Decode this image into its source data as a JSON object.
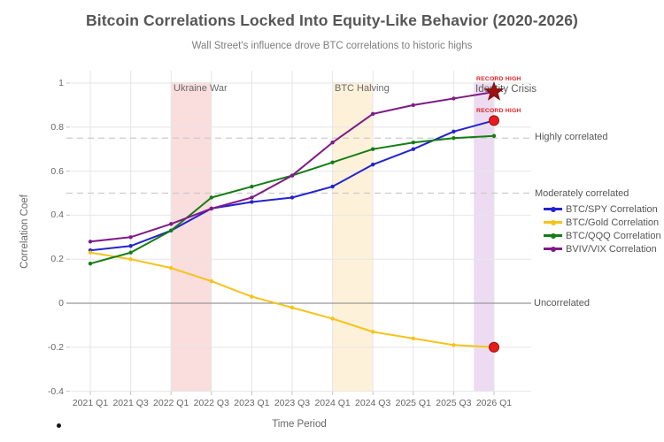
{
  "chart_data": {
    "type": "line",
    "title": "Bitcoin Correlations Locked Into Equity-Like Behavior (2020-2026)",
    "subtitle": "Wall Street's influence drove BTC correlations to historic highs",
    "xlabel": "Time Period",
    "ylabel": "Correlation Coef",
    "categories": [
      "2021 Q1",
      "2021 Q3",
      "2022 Q1",
      "2022 Q3",
      "2023 Q1",
      "2023 Q3",
      "2024 Q1",
      "2024 Q3",
      "2025 Q1",
      "2025 Q3",
      "2026 Q1"
    ],
    "ytick_labels": [
      "1",
      "0.8",
      "0.6",
      "0.4",
      "0.2",
      "0",
      "-0.2",
      "-0.4"
    ],
    "ytick_values": [
      1,
      0.8,
      0.6,
      0.4,
      0.2,
      0,
      -0.2,
      -0.4
    ],
    "ylim": [
      -0.4,
      1.05
    ],
    "grid": true,
    "legend_position": "center-right",
    "series": [
      {
        "name": "BTC/SPY Correlation",
        "color": "#2323cf",
        "values": [
          0.24,
          0.26,
          0.33,
          0.43,
          0.46,
          0.48,
          0.53,
          0.63,
          0.7,
          0.78,
          0.83
        ]
      },
      {
        "name": "BTC/Gold Correlation",
        "color": "#f7c31a",
        "values": [
          0.23,
          0.2,
          0.16,
          0.1,
          0.03,
          -0.02,
          -0.07,
          -0.13,
          -0.16,
          -0.19,
          -0.2
        ]
      },
      {
        "name": "BTC/QQQ Correlation",
        "color": "#157d15",
        "values": [
          0.18,
          0.23,
          0.33,
          0.48,
          0.53,
          0.58,
          0.64,
          0.7,
          0.73,
          0.75,
          0.76
        ]
      },
      {
        "name": "BVIV/VIX Correlation",
        "color": "#7e1b87",
        "values": [
          0.28,
          0.3,
          0.36,
          0.43,
          0.48,
          0.58,
          0.73,
          0.86,
          0.9,
          0.93,
          0.96
        ]
      }
    ],
    "bands": [
      {
        "label": "Ukraine War",
        "from": "2022 Q1",
        "to": "2022 Q3",
        "color": "#fadddd"
      },
      {
        "label": "BTC Halving",
        "from": "2024 Q1",
        "to": "2024 Q3",
        "color": "#fdf1da"
      },
      {
        "label": "",
        "from": "2025 Q4",
        "to": "2026 Q1",
        "color": "#eddcf1"
      }
    ],
    "reference_lines": [
      {
        "label": "Highly correlated",
        "y": 0.75,
        "style": "dashed"
      },
      {
        "label": "Moderately correlated",
        "y": 0.5,
        "style": "dashed"
      },
      {
        "label": "Uncorrelated",
        "y": 0,
        "style": "solid"
      }
    ],
    "annotations": [
      {
        "text": "RECORD HIGH",
        "x": "2026 Q1",
        "y": 0.96,
        "marker": "star",
        "series": "BVIV/VIX Correlation"
      },
      {
        "text": "RECORD HIGH",
        "x": "2026 Q1",
        "y": 0.83,
        "marker": "circle",
        "series": "BTC/SPY Correlation"
      },
      {
        "text": "Identity Crisis",
        "x": "2026 Q1",
        "y": 0.96,
        "marker": "none"
      },
      {
        "text": "",
        "x": "2026 Q1",
        "y": -0.2,
        "marker": "circle",
        "series": "BTC/Gold Correlation"
      }
    ],
    "marker_colors": {
      "star_fill": "#9c1111",
      "star_edge": "#7c0d0d",
      "circle_fill": "#e51c1c",
      "circle_edge": "#991010",
      "annotation_text": "#e12020"
    },
    "grid_color": "#e6e6e6",
    "zero_line_color": "#999999",
    "dashed_line_color": "#cbcbcb"
  }
}
